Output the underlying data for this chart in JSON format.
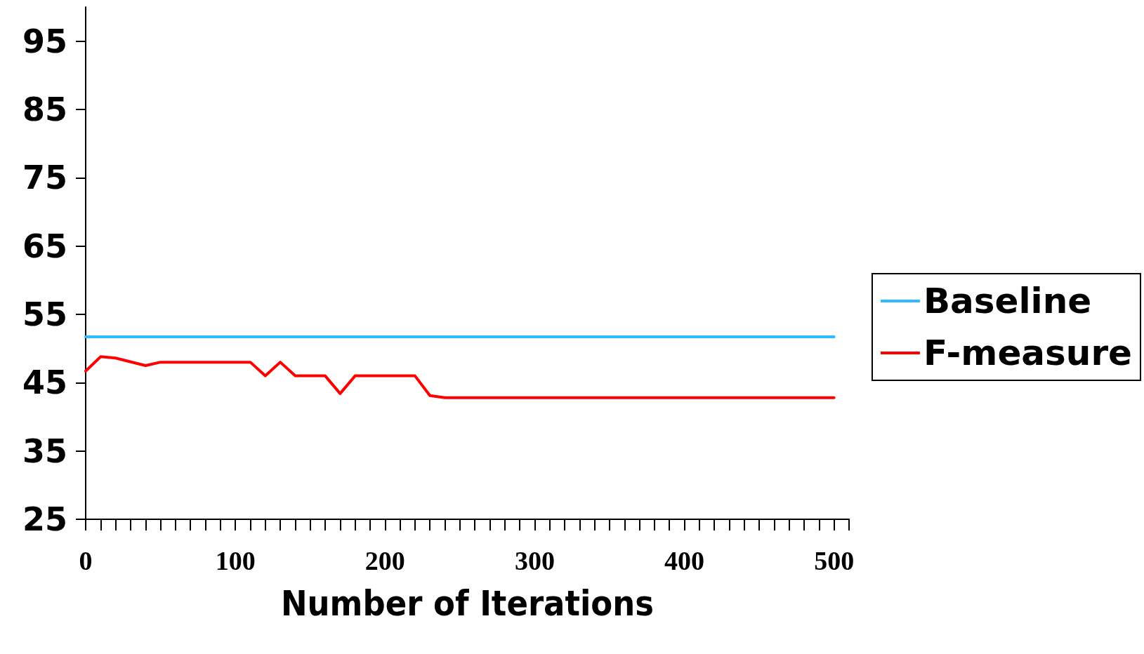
{
  "chart_data": {
    "type": "line",
    "xlabel": "Number of Iterations",
    "xlim": [
      0,
      510
    ],
    "xticks": [
      0,
      {
        "value": 10,
        "label": null
      },
      {
        "value": 20,
        "label": null
      },
      {
        "value": 30,
        "label": null
      },
      {
        "value": 40,
        "label": null
      },
      {
        "value": 50,
        "label": null
      },
      {
        "value": 60,
        "label": null
      },
      {
        "value": 70,
        "label": null
      },
      {
        "value": 80,
        "label": null
      },
      {
        "value": 90,
        "label": null
      },
      100,
      {
        "value": 110,
        "label": null
      },
      {
        "value": 120,
        "label": null
      },
      {
        "value": 130,
        "label": null
      },
      {
        "value": 140,
        "label": null
      },
      {
        "value": 150,
        "label": null
      },
      {
        "value": 160,
        "label": null
      },
      {
        "value": 170,
        "label": null
      },
      {
        "value": 180,
        "label": null
      },
      {
        "value": 190,
        "label": null
      },
      200,
      {
        "value": 210,
        "label": null
      },
      {
        "value": 220,
        "label": null
      },
      {
        "value": 230,
        "label": null
      },
      {
        "value": 240,
        "label": null
      },
      {
        "value": 250,
        "label": null
      },
      {
        "value": 260,
        "label": null
      },
      {
        "value": 270,
        "label": null
      },
      {
        "value": 280,
        "label": null
      },
      {
        "value": 290,
        "label": null
      },
      300,
      {
        "value": 310,
        "label": null
      },
      {
        "value": 320,
        "label": null
      },
      {
        "value": 330,
        "label": null
      },
      {
        "value": 340,
        "label": null
      },
      {
        "value": 350,
        "label": null
      },
      {
        "value": 360,
        "label": null
      },
      {
        "value": 370,
        "label": null
      },
      {
        "value": 380,
        "label": null
      },
      {
        "value": 390,
        "label": null
      },
      400,
      {
        "value": 410,
        "label": null
      },
      {
        "value": 420,
        "label": null
      },
      {
        "value": 430,
        "label": null
      },
      {
        "value": 440,
        "label": null
      },
      {
        "value": 450,
        "label": null
      },
      {
        "value": 460,
        "label": null
      },
      {
        "value": 470,
        "label": null
      },
      {
        "value": 480,
        "label": null
      },
      {
        "value": 490,
        "label": null
      },
      500,
      {
        "value": 510,
        "label": null
      }
    ],
    "ylim": [
      25,
      100
    ],
    "yticks": [
      25,
      35,
      45,
      55,
      65,
      75,
      85,
      95
    ],
    "grid": false,
    "legend": "right",
    "marker": "none",
    "line_style": "solid",
    "series": [
      {
        "name": "Baseline",
        "color": "#33b9ff",
        "x": [
          0,
          500
        ],
        "values": [
          51.7,
          51.7
        ]
      },
      {
        "name": "F-measure",
        "color": "#ff0000",
        "x": [
          0,
          10,
          20,
          40,
          50,
          110,
          120,
          130,
          140,
          160,
          170,
          180,
          220,
          230,
          240,
          500
        ],
        "values": [
          46.7,
          48.8,
          48.6,
          47.5,
          48.0,
          48.0,
          46.0,
          48.0,
          46.0,
          46.0,
          43.4,
          46.0,
          46.0,
          43.1,
          42.8,
          42.8
        ]
      }
    ]
  }
}
